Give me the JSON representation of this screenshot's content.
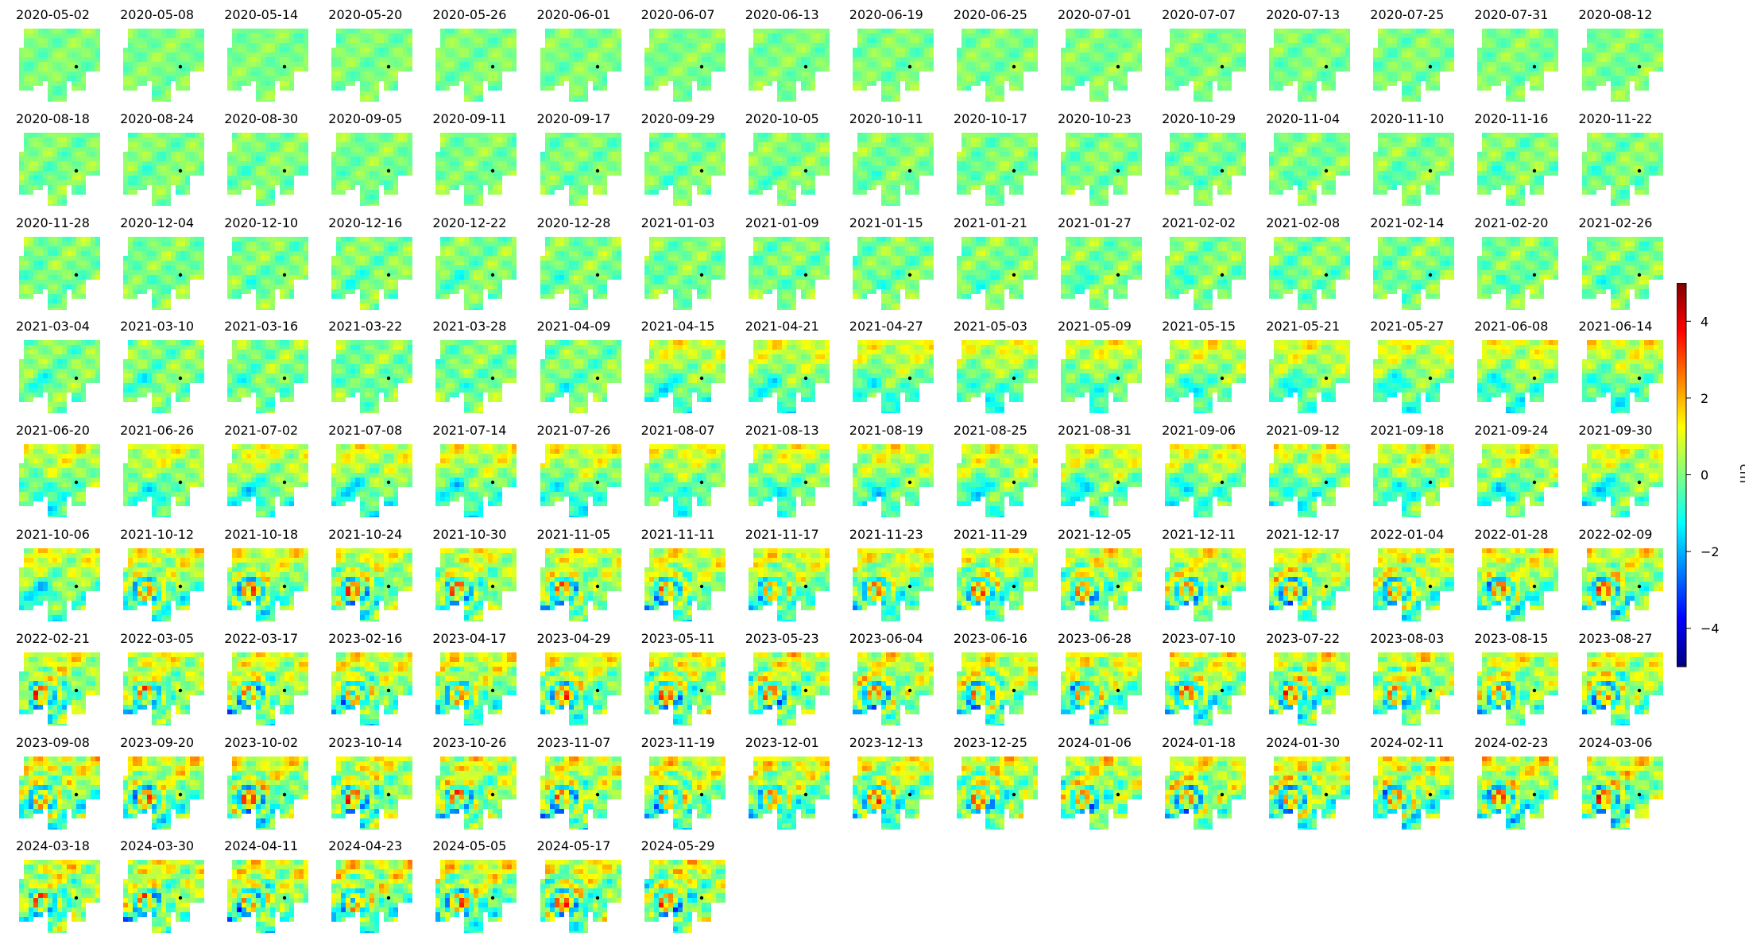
{
  "chart_data": {
    "type": "heatmap",
    "kind": "small-multiples deformation map grid",
    "grid": {
      "columns": 16,
      "rows": 9
    },
    "panels": [
      "2020-05-02",
      "2020-05-08",
      "2020-05-14",
      "2020-05-20",
      "2020-05-26",
      "2020-06-01",
      "2020-06-07",
      "2020-06-13",
      "2020-06-19",
      "2020-06-25",
      "2020-07-01",
      "2020-07-07",
      "2020-07-13",
      "2020-07-25",
      "2020-07-31",
      "2020-08-12",
      "2020-08-18",
      "2020-08-24",
      "2020-08-30",
      "2020-09-05",
      "2020-09-11",
      "2020-09-17",
      "2020-09-29",
      "2020-10-05",
      "2020-10-11",
      "2020-10-17",
      "2020-10-23",
      "2020-10-29",
      "2020-11-04",
      "2020-11-10",
      "2020-11-16",
      "2020-11-22",
      "2020-11-28",
      "2020-12-04",
      "2020-12-10",
      "2020-12-16",
      "2020-12-22",
      "2020-12-28",
      "2021-01-03",
      "2021-01-09",
      "2021-01-15",
      "2021-01-21",
      "2021-01-27",
      "2021-02-02",
      "2021-02-08",
      "2021-02-14",
      "2021-02-20",
      "2021-02-26",
      "2021-03-04",
      "2021-03-10",
      "2021-03-16",
      "2021-03-22",
      "2021-03-28",
      "2021-04-09",
      "2021-04-15",
      "2021-04-21",
      "2021-04-27",
      "2021-05-03",
      "2021-05-09",
      "2021-05-15",
      "2021-05-21",
      "2021-05-27",
      "2021-06-08",
      "2021-06-14",
      "2021-06-20",
      "2021-06-26",
      "2021-07-02",
      "2021-07-08",
      "2021-07-14",
      "2021-07-26",
      "2021-08-07",
      "2021-08-13",
      "2021-08-19",
      "2021-08-25",
      "2021-08-31",
      "2021-09-06",
      "2021-09-12",
      "2021-09-18",
      "2021-09-24",
      "2021-09-30",
      "2021-10-06",
      "2021-10-12",
      "2021-10-18",
      "2021-10-24",
      "2021-10-30",
      "2021-11-05",
      "2021-11-11",
      "2021-11-17",
      "2021-11-23",
      "2021-11-29",
      "2021-12-05",
      "2021-12-11",
      "2021-12-17",
      "2022-01-04",
      "2022-01-28",
      "2022-02-09",
      "2022-02-21",
      "2022-03-05",
      "2022-03-17",
      "2023-02-16",
      "2023-04-17",
      "2023-04-29",
      "2023-05-11",
      "2023-05-23",
      "2023-06-04",
      "2023-06-16",
      "2023-06-28",
      "2023-07-10",
      "2023-07-22",
      "2023-08-03",
      "2023-08-15",
      "2023-08-27",
      "2023-09-08",
      "2023-09-20",
      "2023-10-02",
      "2023-10-14",
      "2023-10-26",
      "2023-11-07",
      "2023-11-19",
      "2023-12-01",
      "2023-12-13",
      "2023-12-25",
      "2024-01-06",
      "2024-01-18",
      "2024-01-30",
      "2024-02-11",
      "2024-02-23",
      "2024-03-06",
      "2024-03-18",
      "2024-03-30",
      "2024-04-11",
      "2024-04-23",
      "2024-05-05",
      "2024-05-17",
      "2024-05-29"
    ],
    "colorbar": {
      "label": "cm",
      "range": [
        -5,
        5
      ],
      "ticks": [
        4,
        2,
        0,
        -2,
        -4
      ],
      "tick_labels": [
        "4",
        "2",
        "0",
        "−2",
        "−4"
      ],
      "colormap": "jet",
      "colormap_stops": [
        "#00007f",
        "#0000ff",
        "#007fff",
        "#00ffff",
        "#7fff7f",
        "#ffff00",
        "#ff7f00",
        "#ff0000",
        "#7f0000"
      ]
    },
    "marker_color": "#000000",
    "background": "#ffffff"
  }
}
